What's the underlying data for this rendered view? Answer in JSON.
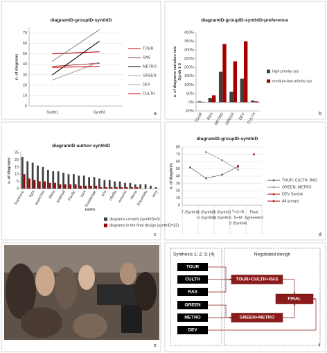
{
  "panels": [
    "a",
    "b",
    "c",
    "d",
    "e",
    "f"
  ],
  "chart_data": [
    {
      "type": "line",
      "title": "diagramID-groupID-synthID",
      "ylabel": "n. of diagrams",
      "categories": [
        "Synth1",
        "Synth3"
      ],
      "ylim": [
        0,
        75
      ],
      "yticks": [
        0,
        10,
        20,
        30,
        40,
        50,
        60,
        70
      ],
      "grid": true,
      "legend": "right",
      "series": [
        {
          "name": "TOUR",
          "color": "#c00000",
          "values": [
            50,
            52
          ]
        },
        {
          "name": "RAS",
          "color": "#953735",
          "values": [
            38,
            41
          ]
        },
        {
          "name": "METRO",
          "color": "#000000",
          "values": [
            30,
            62
          ]
        },
        {
          "name": "GREEN",
          "color": "#7f7f7f",
          "dashed": true,
          "values": [
            43,
            73
          ]
        },
        {
          "name": "DEV",
          "color": "#a6a6a6",
          "values": [
            25,
            42
          ]
        },
        {
          "name": "CULTH",
          "color": "#e00000",
          "values": [
            37,
            38
          ]
        }
      ]
    },
    {
      "type": "bar",
      "title": "diagramID-groupID-synthID-preference",
      "ylabel": [
        "n. of diagrams variation rate",
        "Synth 1-3"
      ],
      "categories": [
        "TOUR",
        "RAS",
        "METRO",
        "GREEN",
        "DEV",
        "CULTH"
      ],
      "ylim": [
        -50,
        400
      ],
      "grid": false,
      "legend": "right",
      "yticks": [
        {
          "value": -50,
          "label": "-50%"
        },
        {
          "value": 0,
          "label": "0%"
        },
        {
          "value": 50,
          "label": "50%"
        },
        {
          "value": 100,
          "label": "100%"
        },
        {
          "value": 150,
          "label": "150%"
        },
        {
          "value": 200,
          "label": "200%"
        },
        {
          "value": 250,
          "label": "250%"
        },
        {
          "value": 300,
          "label": "300%"
        },
        {
          "value": 350,
          "label": "350%"
        },
        {
          "value": 400,
          "label": "400%"
        }
      ],
      "series": [
        {
          "name": "high priority sys",
          "color": "#404040",
          "values": [
            5,
            25,
            175,
            60,
            135,
            10
          ]
        },
        {
          "name": "medium-low priority sys",
          "color": "#a50000",
          "values": [
            2,
            40,
            335,
            235,
            350,
            5
          ]
        }
      ]
    },
    {
      "type": "bar",
      "title": "diagramID-author-synthID",
      "ylabel": "n. of diagrams",
      "xlabel": "users",
      "categories": [
        "fsanthoro",
        null,
        "ligra",
        null,
        "asanchez",
        null,
        "Alicia",
        null,
        "Andinad",
        null,
        "Pacific",
        null,
        "sara",
        null,
        "Guadalupe",
        null,
        "ana",
        null,
        "cfbella",
        null,
        "mmartin",
        null,
        "Marta",
        null,
        "Aricameta",
        null,
        "tony"
      ],
      "ylim": [
        0,
        25
      ],
      "yticks": [
        0,
        5,
        10,
        15,
        20,
        25
      ],
      "grid": false,
      "legend": "bottom",
      "series": [
        {
          "name": "diagrams created (synthID=0)",
          "color": "#404040",
          "values": [
            22,
            19,
            18,
            16,
            15,
            13,
            12,
            12,
            11,
            10,
            10,
            9,
            9,
            8,
            8,
            7,
            6,
            6,
            5,
            5,
            4,
            4,
            3,
            3,
            3,
            2,
            1
          ]
        },
        {
          "name": "diagrams in the final design (synthID=22)",
          "color": "#a00000",
          "values": [
            10,
            7,
            6,
            5,
            5,
            4,
            4,
            3,
            3,
            3,
            3,
            2,
            2,
            2,
            2,
            1,
            1,
            1,
            1,
            1,
            1,
            1,
            1,
            0,
            0,
            0,
            0
          ]
        }
      ]
    },
    {
      "type": "line",
      "title": "diagramID-groupID-synthID",
      "ylabel": "n. of diagrams",
      "markers": true,
      "categories": [
        [
          "T (Synth1)"
        ],
        [
          "C (Synth2)",
          "G (Synth3)"
        ],
        [
          "R (Synth2)",
          "M (Synth3)"
        ],
        [
          "T+C+R",
          "G+M",
          "D (Synth4)"
        ],
        [
          "Final",
          "Agreement"
        ]
      ],
      "ylim": [
        0,
        80
      ],
      "yticks": [
        0,
        10,
        20,
        30,
        40,
        50,
        60,
        70,
        80
      ],
      "grid": true,
      "legend": "right",
      "series": [
        {
          "name": "TOUR; CULTH; RAS",
          "color": "#595959",
          "values": [
            52,
            37,
            42,
            53,
            null
          ]
        },
        {
          "name": "GREEN; METRO",
          "color": "#8c8c8c",
          "values": [
            null,
            73,
            62,
            49,
            null
          ]
        },
        {
          "name": "DEV Synth4",
          "color": "#c00000",
          "values": [
            null,
            null,
            null,
            54,
            null
          ]
        },
        {
          "name": "All groups",
          "color": "#c00000",
          "values": [
            null,
            null,
            null,
            null,
            70
          ]
        }
      ]
    }
  ],
  "diagram": {
    "left_title": "Synthesis 1; 2; 3; (4)",
    "right_title": "Negotiated design",
    "groups": [
      "TOUR",
      "CULTH",
      "RAS",
      "GREEN",
      "METRO",
      "DEV"
    ],
    "merged": [
      "TOUR+CULTH+RAS",
      "GREEN+METRO"
    ],
    "final": "FINAL"
  }
}
